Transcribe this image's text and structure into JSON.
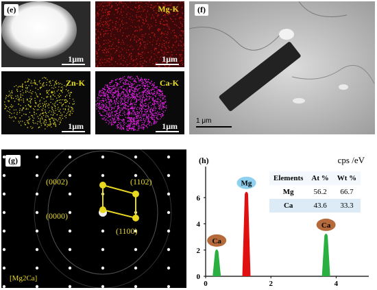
{
  "panel_e": {
    "label": "(e)",
    "maps": [
      {
        "name": "",
        "scale": "1μm"
      },
      {
        "name": "Mg-K",
        "scale": "1μm",
        "color": "#d01818"
      },
      {
        "name": "Zn-K",
        "scale": "1μm",
        "color": "#e8e020"
      },
      {
        "name": "Ca-K",
        "scale": "1μm",
        "color": "#e020e0"
      }
    ]
  },
  "panel_f": {
    "label": "(f)",
    "scale": "1 μm"
  },
  "panel_g": {
    "label": "(g)",
    "indices": [
      "(0002)",
      "(1102)",
      "(0000)",
      "(1100)"
    ],
    "phase": "[Mg2Ca]",
    "accent": "#e8d820"
  },
  "panel_h": {
    "label": "(h)",
    "unit": "cps /eV",
    "table": {
      "headers": [
        "Elements",
        "At %",
        "Wt %"
      ],
      "rows": [
        [
          "Mg",
          "56.2",
          "66.7"
        ],
        [
          "Ca",
          "43.6",
          "33.3"
        ]
      ]
    },
    "peak_labels": {
      "mg": "Mg",
      "ca": "Ca"
    }
  },
  "chart_data": {
    "type": "bar",
    "xlabel": "",
    "ylabel": "cps /eV",
    "xlim": [
      0,
      5
    ],
    "ylim": [
      0,
      8
    ],
    "x_ticks": [
      0,
      2,
      4
    ],
    "y_ticks": [
      0,
      2,
      4,
      6
    ],
    "series": [
      {
        "name": "Ca",
        "x": 0.34,
        "value": 2.1,
        "color": "#2ab040"
      },
      {
        "name": "Mg",
        "x": 1.25,
        "value": 6.5,
        "color": "#e01010"
      },
      {
        "name": "Ca",
        "x": 3.69,
        "value": 3.3,
        "color": "#2ab040"
      }
    ]
  }
}
